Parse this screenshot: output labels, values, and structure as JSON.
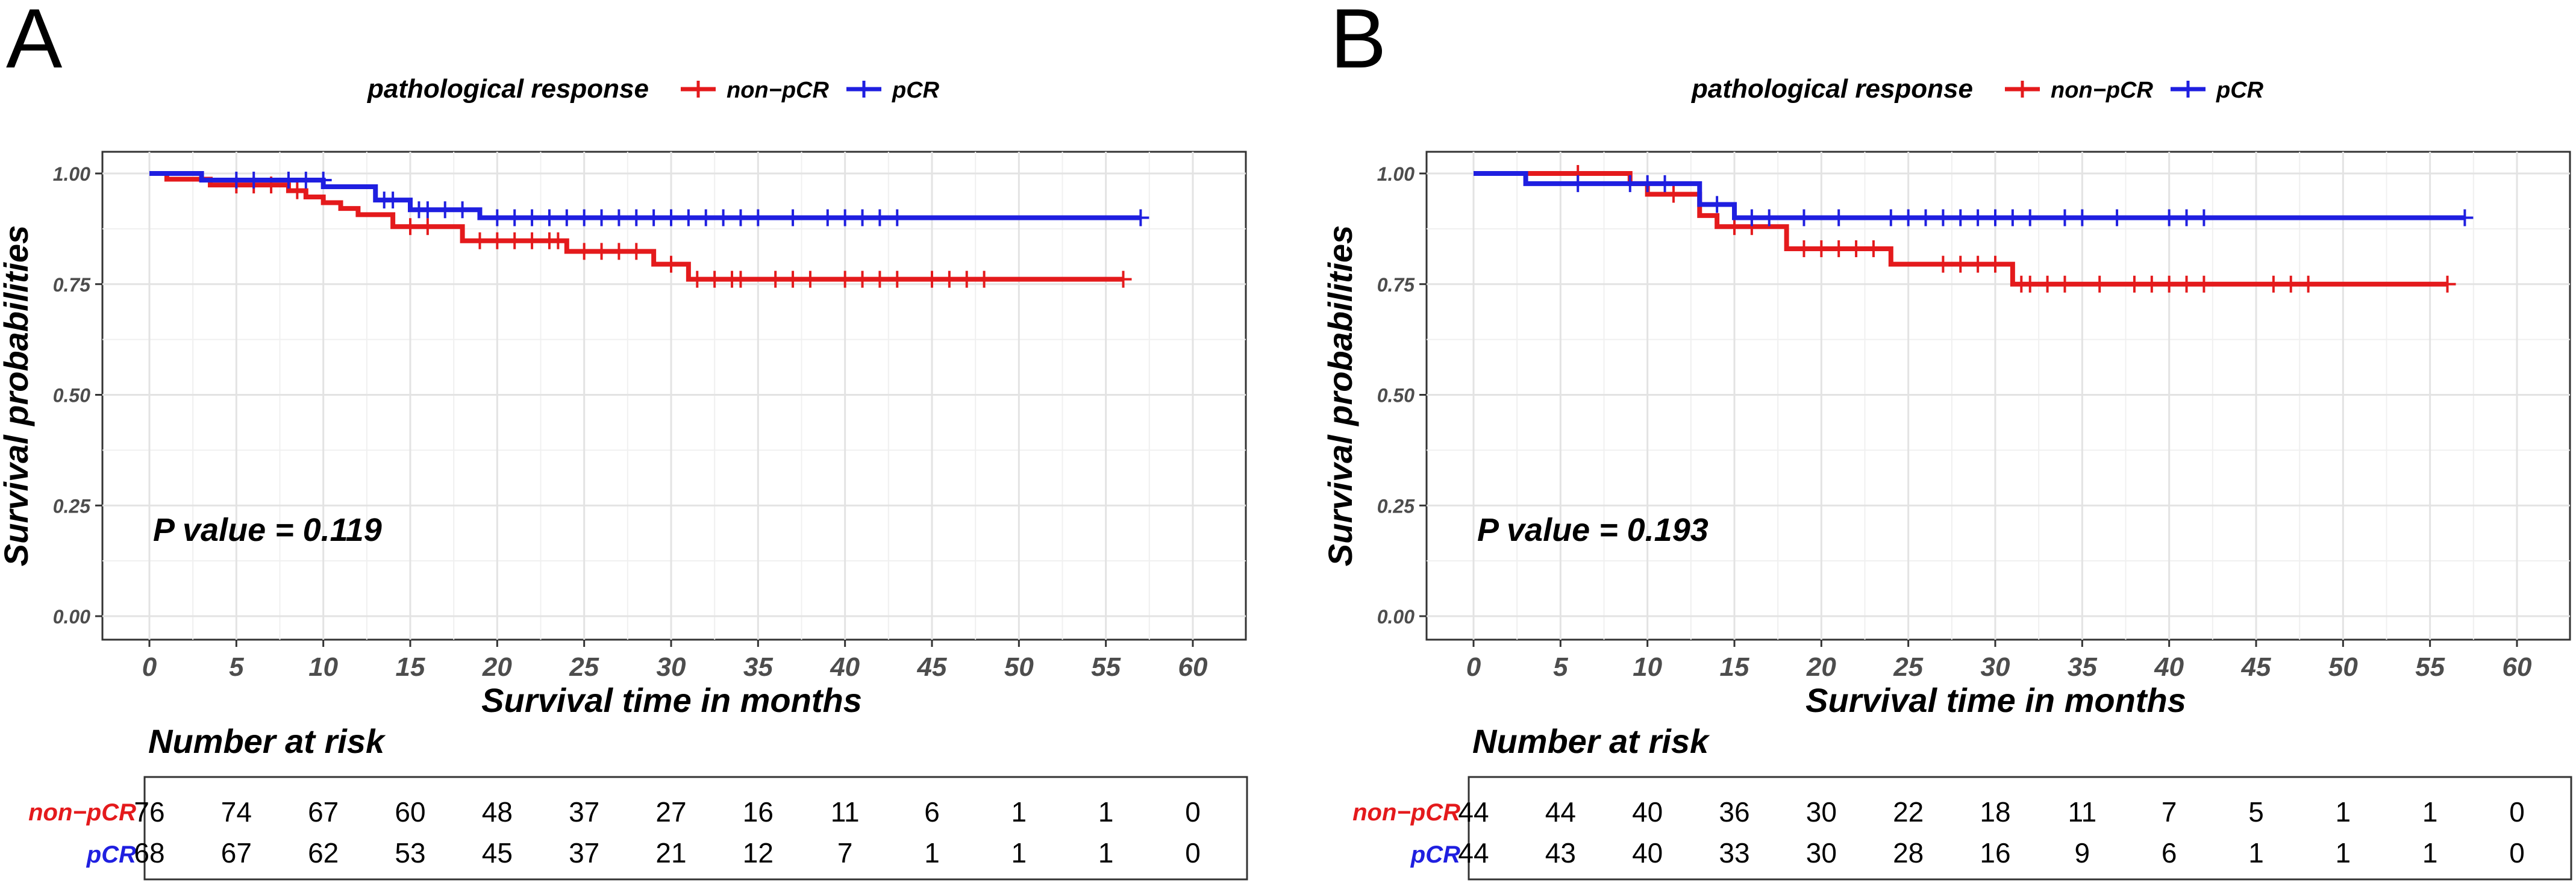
{
  "panels": [
    {
      "label": "A",
      "legend_title": "pathological response",
      "p_value_text": "P value = 0.119",
      "risk_title": "Number at risk"
    },
    {
      "label": "B",
      "legend_title": "pathological response",
      "p_value_text": "P value = 0.193",
      "risk_title": "Number at risk"
    }
  ],
  "chart_data": [
    {
      "type": "line",
      "title": "",
      "xlabel": "Survival time in months",
      "ylabel": "Survival probabilities",
      "xlim": [
        0,
        60
      ],
      "ylim": [
        0,
        1
      ],
      "x_ticks": [
        0,
        5,
        10,
        15,
        20,
        25,
        30,
        35,
        40,
        45,
        50,
        55,
        60
      ],
      "y_ticks": [
        0.0,
        0.25,
        0.5,
        0.75,
        1.0
      ],
      "y_tick_labels": [
        "0.00",
        "0.25",
        "0.50",
        "0.75",
        "1.00"
      ],
      "grid": true,
      "legend": "top",
      "series": [
        {
          "name": "non−pCR",
          "color": "#e41a1c",
          "steps": [
            [
              0,
              1.0
            ],
            [
              1,
              0.987
            ],
            [
              3.5,
              0.974
            ],
            [
              8,
              0.961
            ],
            [
              9,
              0.947
            ],
            [
              10,
              0.934
            ],
            [
              11,
              0.921
            ],
            [
              12,
              0.907
            ],
            [
              14,
              0.88
            ],
            [
              18,
              0.848
            ],
            [
              24,
              0.824
            ],
            [
              29,
              0.795
            ],
            [
              31,
              0.761
            ],
            [
              56,
              0.761
            ]
          ],
          "censor": [
            [
              5,
              0.974
            ],
            [
              6,
              0.974
            ],
            [
              7,
              0.974
            ],
            [
              8.5,
              0.961
            ],
            [
              15,
              0.88
            ],
            [
              16,
              0.88
            ],
            [
              19,
              0.848
            ],
            [
              20,
              0.848
            ],
            [
              21,
              0.848
            ],
            [
              22,
              0.848
            ],
            [
              23,
              0.848
            ],
            [
              23.5,
              0.848
            ],
            [
              25,
              0.824
            ],
            [
              26,
              0.824
            ],
            [
              27,
              0.824
            ],
            [
              28,
              0.824
            ],
            [
              30,
              0.795
            ],
            [
              31.5,
              0.761
            ],
            [
              32.5,
              0.761
            ],
            [
              33.5,
              0.761
            ],
            [
              34,
              0.761
            ],
            [
              36,
              0.761
            ],
            [
              37,
              0.761
            ],
            [
              38,
              0.761
            ],
            [
              40,
              0.761
            ],
            [
              41,
              0.761
            ],
            [
              42,
              0.761
            ],
            [
              43,
              0.761
            ],
            [
              45,
              0.761
            ],
            [
              46,
              0.761
            ],
            [
              47,
              0.761
            ],
            [
              48,
              0.761
            ],
            [
              56,
              0.761
            ]
          ]
        },
        {
          "name": "pCR",
          "color": "#1f1fe0",
          "steps": [
            [
              0,
              1.0
            ],
            [
              3,
              0.985
            ],
            [
              10,
              0.97
            ],
            [
              13,
              0.94
            ],
            [
              15,
              0.918
            ],
            [
              19,
              0.9
            ],
            [
              57,
              0.9
            ]
          ],
          "censor": [
            [
              5,
              0.985
            ],
            [
              6,
              0.985
            ],
            [
              8,
              0.985
            ],
            [
              9,
              0.985
            ],
            [
              10,
              0.985
            ],
            [
              13.5,
              0.94
            ],
            [
              14,
              0.94
            ],
            [
              15.5,
              0.918
            ],
            [
              16,
              0.918
            ],
            [
              17,
              0.918
            ],
            [
              18,
              0.918
            ],
            [
              20,
              0.9
            ],
            [
              21,
              0.9
            ],
            [
              22,
              0.9
            ],
            [
              23,
              0.9
            ],
            [
              24,
              0.9
            ],
            [
              25,
              0.9
            ],
            [
              26,
              0.9
            ],
            [
              27,
              0.9
            ],
            [
              28,
              0.9
            ],
            [
              29,
              0.9
            ],
            [
              30,
              0.9
            ],
            [
              31,
              0.9
            ],
            [
              32,
              0.9
            ],
            [
              33,
              0.9
            ],
            [
              34,
              0.9
            ],
            [
              35,
              0.9
            ],
            [
              37,
              0.9
            ],
            [
              39,
              0.9
            ],
            [
              40,
              0.9
            ],
            [
              41,
              0.9
            ],
            [
              42,
              0.9
            ],
            [
              43,
              0.9
            ],
            [
              57,
              0.9
            ]
          ]
        }
      ],
      "risk_table": {
        "times": [
          0,
          5,
          10,
          15,
          20,
          25,
          30,
          35,
          40,
          45,
          50,
          55,
          60
        ],
        "rows": [
          {
            "name": "non−pCR",
            "values": [
              76,
              74,
              67,
              60,
              48,
              37,
              27,
              16,
              11,
              6,
              1,
              1,
              0
            ]
          },
          {
            "name": "pCR",
            "values": [
              68,
              67,
              62,
              53,
              45,
              37,
              21,
              12,
              7,
              1,
              1,
              1,
              0
            ]
          }
        ]
      }
    },
    {
      "type": "line",
      "title": "",
      "xlabel": "Survival time in months",
      "ylabel": "Survival probabilities",
      "xlim": [
        0,
        60
      ],
      "ylim": [
        0,
        1
      ],
      "x_ticks": [
        0,
        5,
        10,
        15,
        20,
        25,
        30,
        35,
        40,
        45,
        50,
        55,
        60
      ],
      "y_ticks": [
        0.0,
        0.25,
        0.5,
        0.75,
        1.0
      ],
      "y_tick_labels": [
        "0.00",
        "0.25",
        "0.50",
        "0.75",
        "1.00"
      ],
      "grid": true,
      "legend": "top",
      "series": [
        {
          "name": "non−pCR",
          "color": "#e41a1c",
          "steps": [
            [
              0,
              1.0
            ],
            [
              9,
              0.977
            ],
            [
              10,
              0.953
            ],
            [
              13,
              0.905
            ],
            [
              14,
              0.88
            ],
            [
              18,
              0.83
            ],
            [
              24,
              0.795
            ],
            [
              31,
              0.75
            ],
            [
              56,
              0.75
            ]
          ],
          "censor": [
            [
              6,
              1.0
            ],
            [
              11.5,
              0.953
            ],
            [
              15,
              0.88
            ],
            [
              16,
              0.88
            ],
            [
              19,
              0.83
            ],
            [
              20,
              0.83
            ],
            [
              21,
              0.83
            ],
            [
              22,
              0.83
            ],
            [
              23,
              0.83
            ],
            [
              27,
              0.795
            ],
            [
              28,
              0.795
            ],
            [
              29,
              0.795
            ],
            [
              30,
              0.795
            ],
            [
              31.5,
              0.75
            ],
            [
              32,
              0.75
            ],
            [
              33,
              0.75
            ],
            [
              34,
              0.75
            ],
            [
              36,
              0.75
            ],
            [
              38,
              0.75
            ],
            [
              39,
              0.75
            ],
            [
              40,
              0.75
            ],
            [
              41,
              0.75
            ],
            [
              42,
              0.75
            ],
            [
              46,
              0.75
            ],
            [
              47,
              0.75
            ],
            [
              48,
              0.75
            ],
            [
              56,
              0.75
            ]
          ]
        },
        {
          "name": "pCR",
          "color": "#1f1fe0",
          "steps": [
            [
              0,
              1.0
            ],
            [
              3,
              0.977
            ],
            [
              13,
              0.93
            ],
            [
              15,
              0.9
            ],
            [
              57,
              0.9
            ]
          ],
          "censor": [
            [
              6,
              0.977
            ],
            [
              9,
              0.977
            ],
            [
              10,
              0.977
            ],
            [
              11,
              0.977
            ],
            [
              14,
              0.93
            ],
            [
              16,
              0.9
            ],
            [
              17,
              0.9
            ],
            [
              19,
              0.9
            ],
            [
              21,
              0.9
            ],
            [
              24,
              0.9
            ],
            [
              25,
              0.9
            ],
            [
              26,
              0.9
            ],
            [
              27,
              0.9
            ],
            [
              28,
              0.9
            ],
            [
              29,
              0.9
            ],
            [
              30,
              0.9
            ],
            [
              31,
              0.9
            ],
            [
              32,
              0.9
            ],
            [
              34,
              0.9
            ],
            [
              35,
              0.9
            ],
            [
              37,
              0.9
            ],
            [
              40,
              0.9
            ],
            [
              41,
              0.9
            ],
            [
              42,
              0.9
            ],
            [
              57,
              0.9
            ]
          ]
        }
      ],
      "risk_table": {
        "times": [
          0,
          5,
          10,
          15,
          20,
          25,
          30,
          35,
          40,
          45,
          50,
          55,
          60
        ],
        "rows": [
          {
            "name": "non−pCR",
            "values": [
              44,
              44,
              40,
              36,
              30,
              22,
              18,
              11,
              7,
              5,
              1,
              1,
              0
            ]
          },
          {
            "name": "pCR",
            "values": [
              44,
              43,
              40,
              33,
              30,
              28,
              16,
              9,
              6,
              1,
              1,
              1,
              0
            ]
          }
        ]
      }
    }
  ]
}
